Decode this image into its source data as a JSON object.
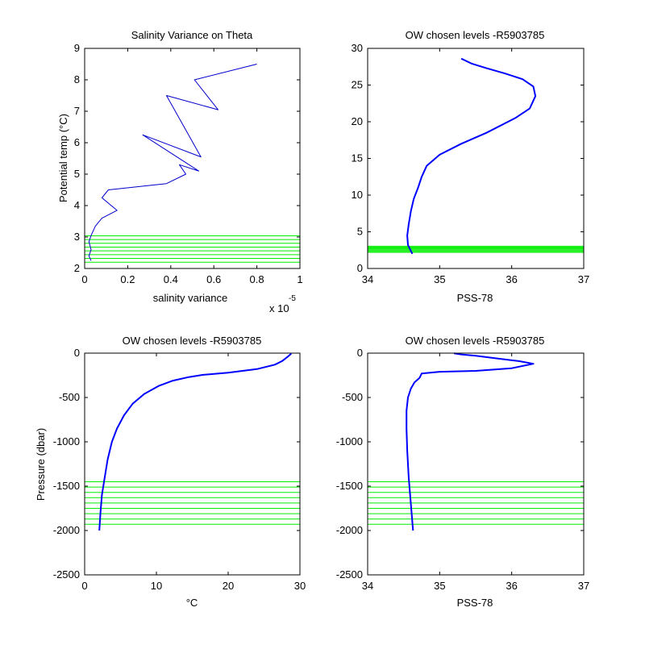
{
  "chart_data": [
    {
      "type": "line",
      "title": "Salinity Variance on Theta",
      "xlabel": "salinity variance",
      "ylabel": "Potential temp (°C)",
      "x_exponent_label": "x 10",
      "x_exponent_power": "-5",
      "xlim": [
        0,
        1
      ],
      "ylim": [
        2,
        9
      ],
      "xticks": [
        0,
        0.2,
        0.4,
        0.6,
        0.8,
        1
      ],
      "xtick_labels": [
        "0",
        "0.2",
        "0.4",
        "0.6",
        "0.8",
        "1"
      ],
      "yticks": [
        2,
        3,
        4,
        5,
        6,
        7,
        8,
        9
      ],
      "ytick_labels": [
        "2",
        "3",
        "4",
        "5",
        "6",
        "7",
        "8",
        "9"
      ],
      "grid": false,
      "line_color": "#0000cc",
      "marker_color": "#00ee00",
      "series": [
        {
          "x": [
            0.8,
            0.51,
            0.62,
            0.38,
            0.54,
            0.27,
            0.53,
            0.44,
            0.47,
            0.38,
            0.11,
            0.08,
            0.15,
            0.08,
            0.05,
            0.03,
            0.02,
            0.03,
            0.02,
            0.03
          ],
          "y": [
            8.5,
            8.0,
            7.05,
            7.5,
            5.55,
            6.25,
            5.1,
            5.3,
            5.0,
            4.7,
            4.5,
            4.25,
            3.85,
            3.6,
            3.35,
            3.05,
            2.85,
            2.6,
            2.4,
            2.25
          ]
        }
      ],
      "chosen_levels": [
        2.2,
        2.32,
        2.44,
        2.56,
        2.68,
        2.8,
        2.92,
        3.04
      ]
    },
    {
      "type": "line",
      "title": "OW chosen levels -R5903785",
      "xlabel": "PSS-78",
      "ylabel": "",
      "xlim": [
        34,
        37
      ],
      "ylim": [
        0,
        30
      ],
      "xticks": [
        34,
        35,
        36,
        37
      ],
      "xtick_labels": [
        "34",
        "35",
        "36",
        "37"
      ],
      "yticks": [
        0,
        5,
        10,
        15,
        20,
        25,
        30
      ],
      "ytick_labels": [
        "0",
        "5",
        "10",
        "15",
        "20",
        "25",
        "30"
      ],
      "grid": false,
      "line_color": "#0000ff",
      "marker_color": "#00ee00",
      "series": [
        {
          "x": [
            34.62,
            34.56,
            34.55,
            34.57,
            34.6,
            34.64,
            34.7,
            34.75,
            34.82,
            35.0,
            35.3,
            35.65,
            36.05,
            36.25,
            36.33,
            36.3,
            36.15,
            35.9,
            35.65,
            35.45,
            35.3
          ],
          "y": [
            2.0,
            3.2,
            4.5,
            6.0,
            7.8,
            9.5,
            11.0,
            12.5,
            14.0,
            15.5,
            17.0,
            18.5,
            20.5,
            21.8,
            23.5,
            24.8,
            25.8,
            26.6,
            27.3,
            27.9,
            28.6
          ]
        }
      ],
      "chosen_levels": [
        2.2,
        2.32,
        2.44,
        2.56,
        2.68,
        2.8,
        2.92,
        3.04
      ]
    },
    {
      "type": "line",
      "title": "OW chosen levels -R5903785",
      "xlabel": "°C",
      "ylabel": "Pressure (dbar)",
      "xlim": [
        0,
        30
      ],
      "ylim": [
        -2500,
        0
      ],
      "xticks": [
        0,
        10,
        20,
        30
      ],
      "xtick_labels": [
        "0",
        "10",
        "20",
        "30"
      ],
      "yticks": [
        -2500,
        -2000,
        -1500,
        -1000,
        -500,
        0
      ],
      "ytick_labels": [
        "-2500",
        "-2000",
        "-1500",
        "-1000",
        "-500",
        "0"
      ],
      "grid": false,
      "line_color": "#0000ff",
      "marker_color": "#00ee00",
      "series": [
        {
          "x": [
            2.05,
            2.2,
            2.4,
            2.8,
            3.2,
            3.8,
            4.5,
            5.5,
            6.7,
            8.3,
            10.3,
            12.3,
            14.5,
            16.5,
            20.0,
            24.0,
            26.5,
            27.5,
            28.3,
            28.8
          ],
          "y": [
            -2000,
            -1800,
            -1600,
            -1400,
            -1200,
            -1000,
            -850,
            -700,
            -570,
            -460,
            -370,
            -310,
            -270,
            -245,
            -220,
            -180,
            -130,
            -90,
            -40,
            -5
          ]
        }
      ],
      "chosen_levels": [
        -1450,
        -1510,
        -1570,
        -1630,
        -1690,
        -1750,
        -1810,
        -1870,
        -1930
      ]
    },
    {
      "type": "line",
      "title": "OW chosen levels -R5903785",
      "xlabel": "PSS-78",
      "ylabel": "",
      "xlim": [
        34,
        37
      ],
      "ylim": [
        -2500,
        0
      ],
      "xticks": [
        34,
        35,
        36,
        37
      ],
      "xtick_labels": [
        "34",
        "35",
        "36",
        "37"
      ],
      "yticks": [
        -2500,
        -2000,
        -1500,
        -1000,
        -500,
        0
      ],
      "ytick_labels": [
        "-2500",
        "-2000",
        "-1500",
        "-1000",
        "-500",
        "0"
      ],
      "grid": false,
      "line_color": "#0000ff",
      "marker_color": "#00ee00",
      "series": [
        {
          "x": [
            34.63,
            34.6,
            34.57,
            34.55,
            34.54,
            34.54,
            34.56,
            34.6,
            34.65,
            34.72,
            34.75,
            35.0,
            35.5,
            36.0,
            36.3,
            36.1,
            35.8,
            35.5,
            35.3,
            35.2
          ],
          "y": [
            -2000,
            -1700,
            -1400,
            -1100,
            -850,
            -650,
            -500,
            -400,
            -330,
            -280,
            -230,
            -210,
            -200,
            -170,
            -120,
            -90,
            -60,
            -30,
            -15,
            -2
          ]
        }
      ],
      "chosen_levels": [
        -1450,
        -1510,
        -1570,
        -1630,
        -1690,
        -1750,
        -1810,
        -1870,
        -1930
      ]
    }
  ]
}
